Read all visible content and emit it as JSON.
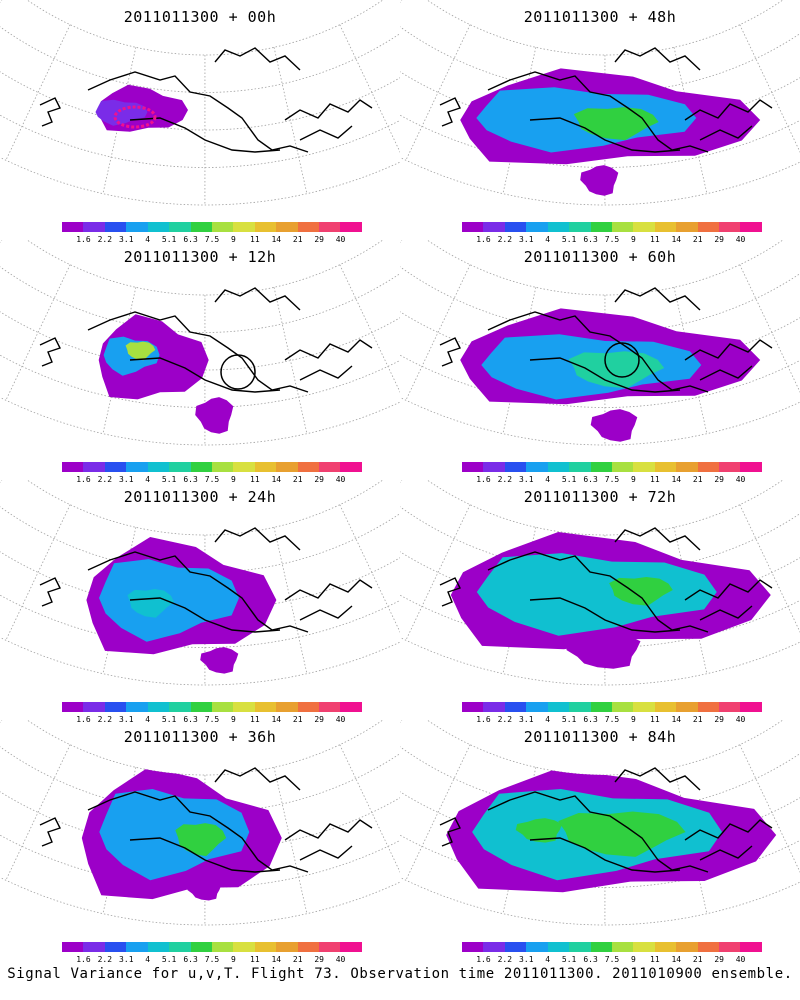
{
  "panels": [
    {
      "title": "2011011300 + 00h",
      "lead_h": 0
    },
    {
      "title": "2011011300 + 48h",
      "lead_h": 48
    },
    {
      "title": "2011011300 + 12h",
      "lead_h": 12
    },
    {
      "title": "2011011300 + 60h",
      "lead_h": 60
    },
    {
      "title": "2011011300 + 24h",
      "lead_h": 24
    },
    {
      "title": "2011011300 + 72h",
      "lead_h": 72
    },
    {
      "title": "2011011300 + 36h",
      "lead_h": 36
    },
    {
      "title": "2011011300 + 84h",
      "lead_h": 84
    }
  ],
  "legend": {
    "colors": [
      "#9c00c8",
      "#7a2ce8",
      "#2850f0",
      "#18a0f0",
      "#10c0d0",
      "#20d0a0",
      "#30d040",
      "#a8e040",
      "#d8e040",
      "#e8c030",
      "#e8a030",
      "#f07040",
      "#f04070",
      "#f01090"
    ],
    "labels": [
      "1.6",
      "2.2",
      "3.1",
      "4",
      "5.1",
      "6.3",
      "7.5",
      "9",
      "11",
      "14",
      "21",
      "29",
      "40"
    ]
  },
  "map_colors": {
    "land": "#000000",
    "grid": "#a0a0a0",
    "circle": "#000000",
    "marker": "#f01090"
  },
  "caption": "Signal Variance for u,v,T. Flight 73. Observation time 2011011300. 2011010900 ensemble."
}
